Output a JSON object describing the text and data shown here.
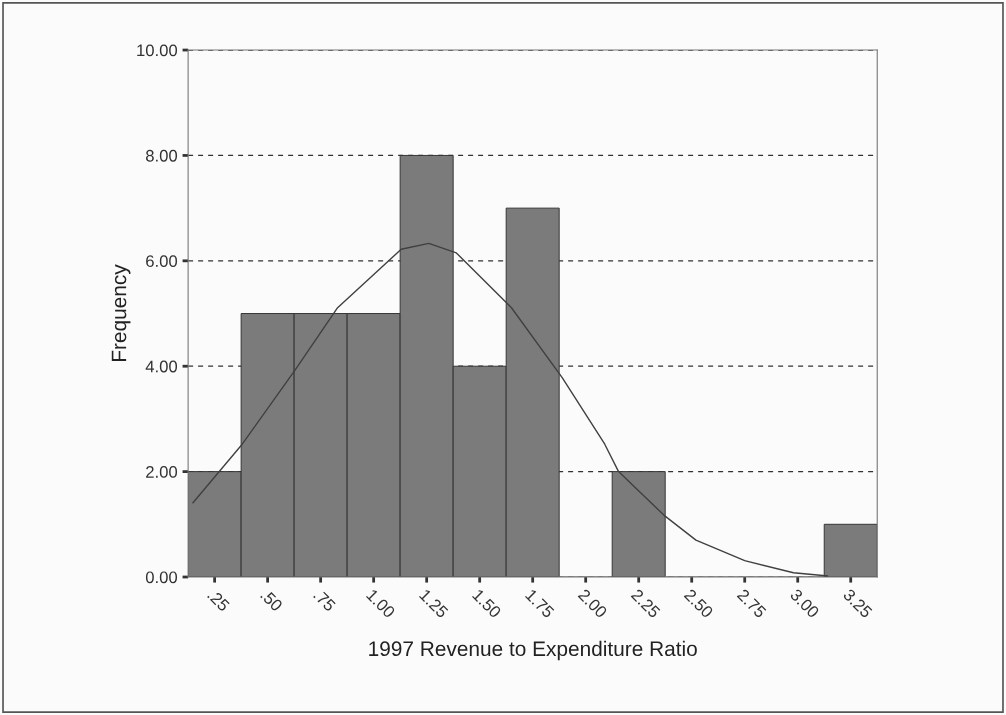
{
  "chart_data": {
    "type": "histogram",
    "xlabel": "1997 Revenue to Expenditure Ratio",
    "ylabel": "Frequency",
    "bins": [
      0.125,
      0.375,
      0.625,
      0.875,
      1.125,
      1.375,
      1.625,
      1.875,
      2.125,
      2.375,
      2.625,
      2.875,
      3.125,
      3.375
    ],
    "values": [
      2,
      5,
      5,
      5,
      8,
      4,
      7,
      0,
      2,
      0,
      0,
      0,
      1
    ],
    "color": "#7b7b7b",
    "series": [
      {
        "type": "line",
        "color": "#404040",
        "x": [
          0.148,
          0.38,
          0.63,
          0.83,
          1.13,
          1.26,
          1.39,
          1.65,
          1.89,
          2.09,
          2.155,
          2.37,
          2.52,
          2.75,
          2.98,
          3.14
        ],
        "values": [
          1.41,
          2.52,
          3.93,
          5.11,
          6.22,
          6.33,
          6.15,
          5.11,
          3.78,
          2.52,
          2.0,
          1.17,
          0.7,
          0.31,
          0.08,
          0.02
        ]
      }
    ],
    "xlim": [
      0.125,
      3.375
    ],
    "xticks": [
      {
        "value": 0.25,
        "label": ".25"
      },
      {
        "value": 0.5,
        "label": ".50"
      },
      {
        "value": 0.75,
        "label": ".75"
      },
      {
        "value": 1.0,
        "label": "1.00"
      },
      {
        "value": 1.25,
        "label": "1.25"
      },
      {
        "value": 1.5,
        "label": "1.50"
      },
      {
        "value": 1.75,
        "label": "1.75"
      },
      {
        "value": 2.0,
        "label": "2.00"
      },
      {
        "value": 2.25,
        "label": "2.25"
      },
      {
        "value": 2.5,
        "label": "2.50"
      },
      {
        "value": 2.75,
        "label": "2.75"
      },
      {
        "value": 3.0,
        "label": "3.00"
      },
      {
        "value": 3.25,
        "label": "3.25"
      }
    ],
    "ylim": [
      0,
      10
    ],
    "yticks": [
      {
        "value": 0,
        "label": "0.00"
      },
      {
        "value": 2,
        "label": "2.00"
      },
      {
        "value": 4,
        "label": "4.00"
      },
      {
        "value": 6,
        "label": "6.00"
      },
      {
        "value": 8,
        "label": "8.00"
      },
      {
        "value": 10,
        "label": "10.00"
      }
    ],
    "grid": "y",
    "line_style": "solid",
    "marker": "none"
  }
}
